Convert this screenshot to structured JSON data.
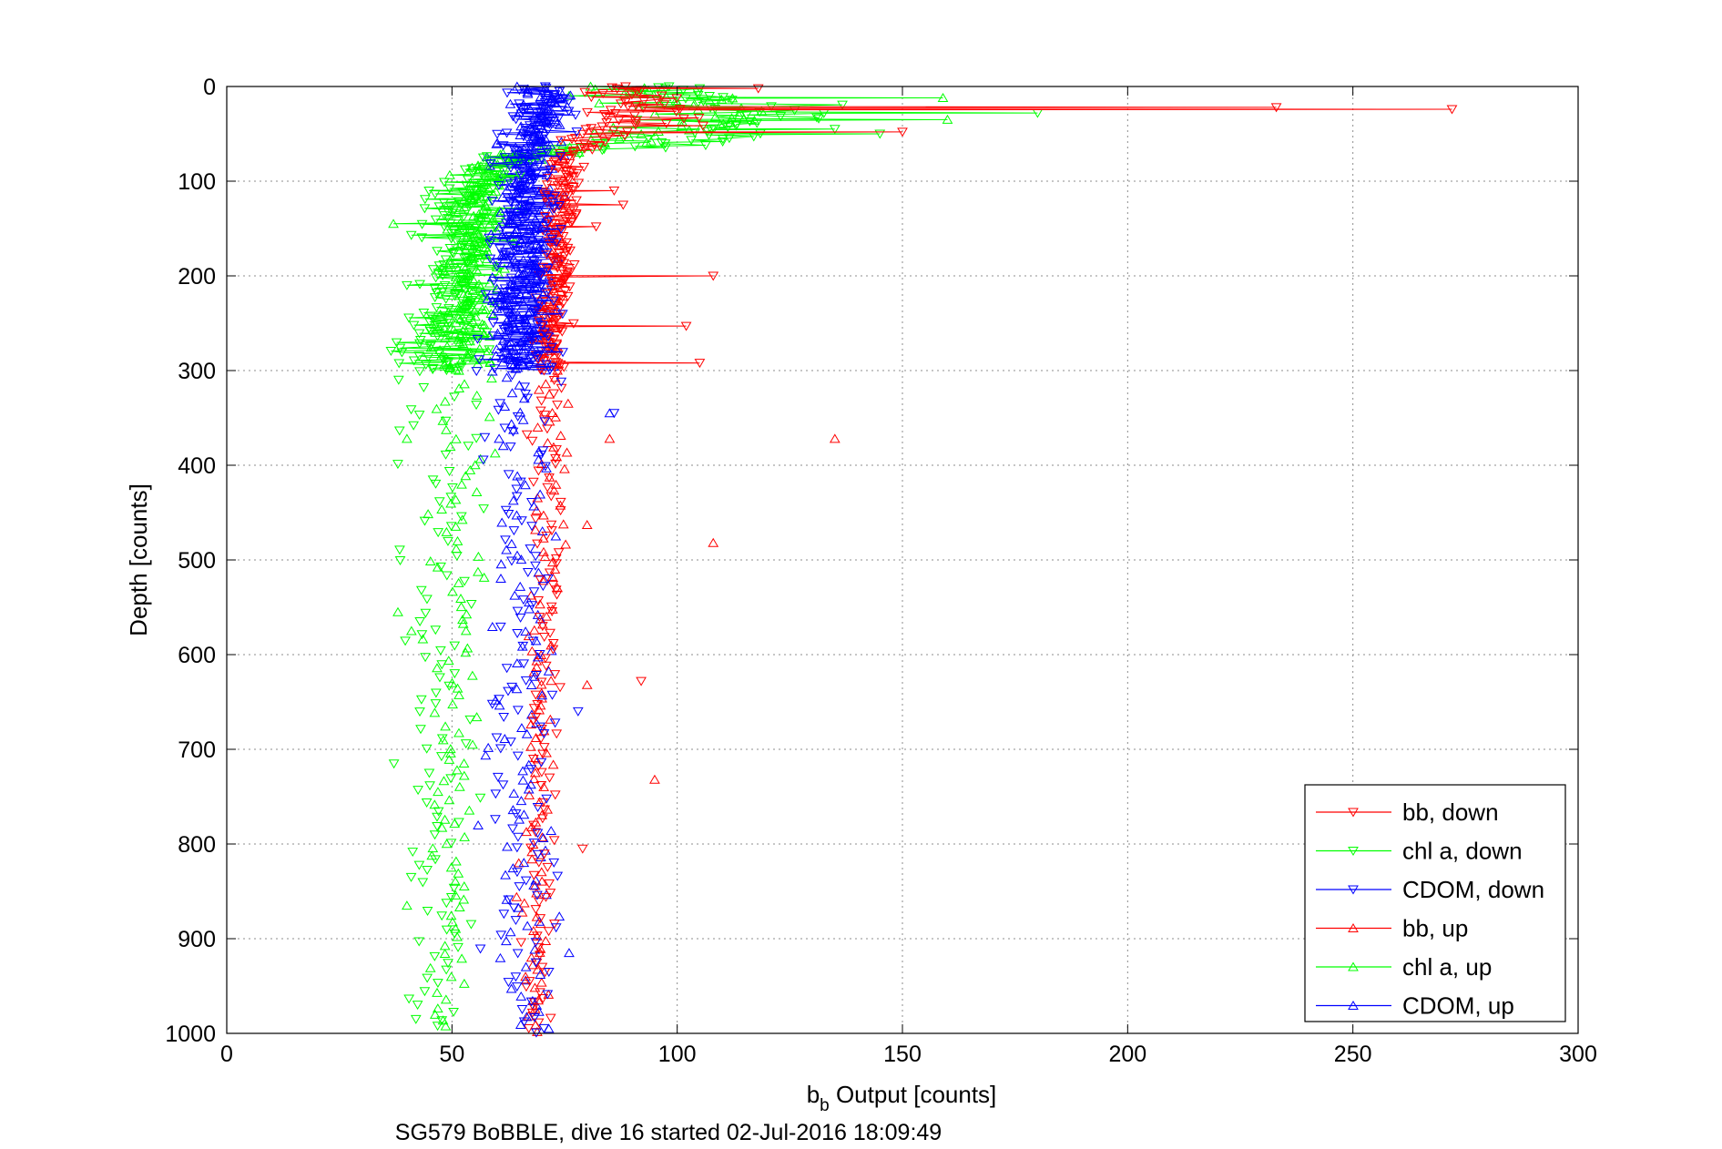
{
  "chart_data": {
    "type": "scatter",
    "title": "",
    "xlabel_main": "b",
    "xlabel_sub": "b",
    "xlabel_rest": " Output [counts]",
    "ylabel": "Depth [counts]",
    "caption": "SG579 BoBBLE, dive 16 started 02-Jul-2016 18:09:49",
    "xlim": [
      0,
      300
    ],
    "ylim": [
      0,
      1000
    ],
    "y_reversed": true,
    "grid": true,
    "legend_position": "bottom-right",
    "xticks": [
      "0",
      "50",
      "100",
      "150",
      "200",
      "250",
      "300"
    ],
    "yticks": [
      "0",
      "100",
      "200",
      "300",
      "400",
      "500",
      "600",
      "700",
      "800",
      "900",
      "1000"
    ],
    "series": [
      {
        "name": "bb, down",
        "color": "#ff0000",
        "marker": "triangle-down",
        "profile": [
          [
            0,
            88,
            8
          ],
          [
            40,
            92,
            10
          ],
          [
            70,
            75,
            3
          ],
          [
            300,
            72,
            3
          ],
          [
            1000,
            69,
            2
          ]
        ],
        "outliers": [
          [
            272,
            24
          ],
          [
            233,
            22
          ],
          [
            150,
            48
          ],
          [
            118,
            2
          ],
          [
            108,
            200
          ],
          [
            105,
            292
          ],
          [
            102,
            253
          ],
          [
            92,
            628
          ],
          [
            88,
            125
          ],
          [
            86,
            110
          ],
          [
            82,
            148
          ],
          [
            79,
            805
          ]
        ]
      },
      {
        "name": "chl a, down",
        "color": "#00ff00",
        "marker": "triangle-down",
        "profile": [
          [
            0,
            95,
            10
          ],
          [
            30,
            120,
            15
          ],
          [
            55,
            110,
            12
          ],
          [
            75,
            62,
            5
          ],
          [
            110,
            52,
            6
          ],
          [
            300,
            48,
            8
          ],
          [
            1000,
            46,
            6
          ]
        ],
        "outliers": [
          [
            180,
            28
          ],
          [
            145,
            50
          ],
          [
            135,
            45
          ],
          [
            105,
            2
          ],
          [
            40,
            210
          ],
          [
            42,
            985
          ]
        ]
      },
      {
        "name": "CDOM, down",
        "color": "#0000ff",
        "marker": "triangle-down",
        "profile": [
          [
            0,
            71,
            5
          ],
          [
            70,
            67,
            6
          ],
          [
            300,
            65,
            6
          ],
          [
            1000,
            66,
            5
          ]
        ],
        "outliers": [
          [
            86,
            345
          ],
          [
            78,
            660
          ]
        ]
      },
      {
        "name": "bb, up",
        "color": "#ff0000",
        "marker": "triangle-up",
        "profile": [
          [
            300,
            72,
            3
          ],
          [
            1000,
            68,
            2
          ]
        ],
        "outliers": [
          [
            135,
            372
          ],
          [
            108,
            482
          ],
          [
            95,
            732
          ],
          [
            80,
            632
          ],
          [
            80,
            463
          ],
          [
            85,
            372
          ]
        ]
      },
      {
        "name": "chl a, up",
        "color": "#00ff00",
        "marker": "triangle-up",
        "profile": [
          [
            0,
            90,
            10
          ],
          [
            40,
            105,
            15
          ],
          [
            80,
            58,
            4
          ],
          [
            300,
            52,
            5
          ],
          [
            1000,
            50,
            3
          ]
        ],
        "outliers": [
          [
            159,
            12
          ],
          [
            160,
            35
          ],
          [
            37,
            145
          ],
          [
            40,
            372
          ],
          [
            38,
            555
          ],
          [
            41,
            575
          ],
          [
            40,
            865
          ]
        ]
      },
      {
        "name": "CDOM, up",
        "color": "#0000ff",
        "marker": "triangle-up",
        "profile": [
          [
            0,
            70,
            5
          ],
          [
            70,
            67,
            5
          ],
          [
            300,
            66,
            5
          ],
          [
            1000,
            66,
            5
          ]
        ],
        "outliers": [
          [
            85,
            345
          ],
          [
            76,
            915
          ]
        ]
      }
    ]
  }
}
